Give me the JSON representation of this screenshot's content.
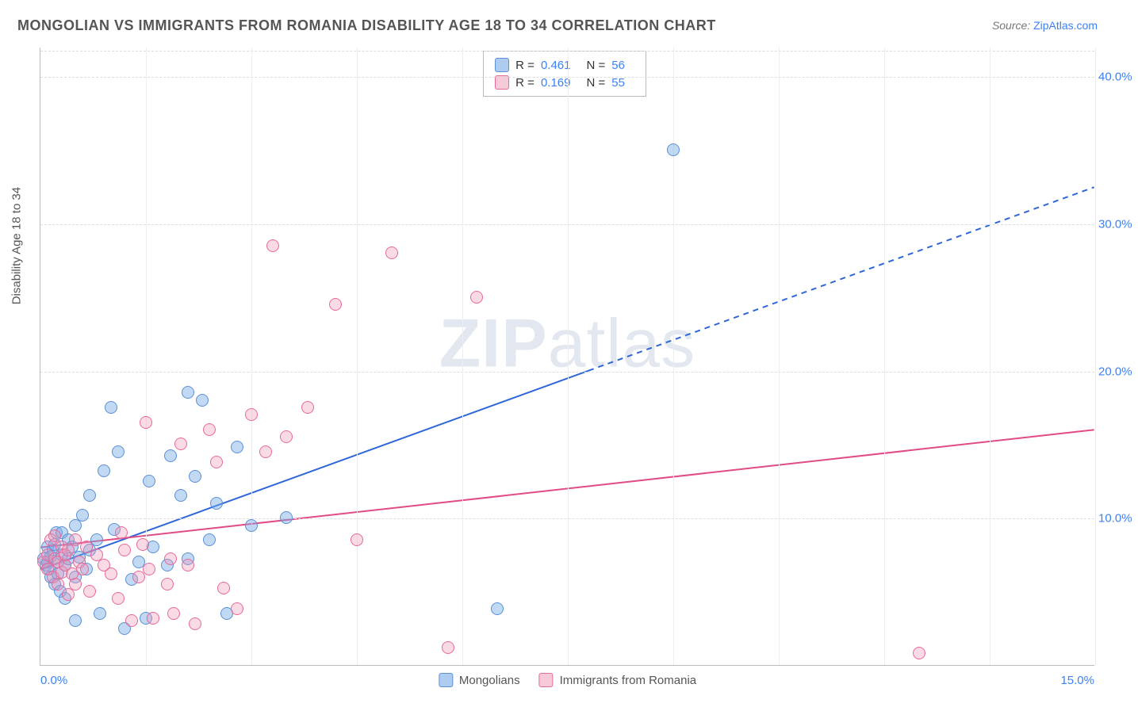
{
  "title": "MONGOLIAN VS IMMIGRANTS FROM ROMANIA DISABILITY AGE 18 TO 34 CORRELATION CHART",
  "source_label": "Source:",
  "source_link": "ZipAtlas.com",
  "ylabel": "Disability Age 18 to 34",
  "watermark_a": "ZIP",
  "watermark_b": "atlas",
  "chart": {
    "type": "scatter",
    "xlim": [
      0,
      15
    ],
    "ylim": [
      0,
      42
    ],
    "xticks": [
      {
        "v": 0,
        "label": "0.0%"
      },
      {
        "v": 15,
        "label": "15.0%"
      }
    ],
    "yticks": [
      {
        "v": 10,
        "label": "10.0%"
      },
      {
        "v": 20,
        "label": "20.0%"
      },
      {
        "v": 30,
        "label": "30.0%"
      },
      {
        "v": 40,
        "label": "40.0%"
      }
    ],
    "vgrid": [
      1.5,
      3.0,
      4.5,
      6.0,
      7.5,
      9.0,
      10.5,
      12.0,
      13.5,
      15.0
    ],
    "background_color": "#ffffff",
    "grid_color": "#dddddd",
    "axis_color": "#bbbbbb",
    "tick_label_color": "#3b82f6",
    "point_radius": 8,
    "series": [
      {
        "name": "Mongolians",
        "color_fill": "rgba(120,170,230,0.45)",
        "color_stroke": "#5b8fd6",
        "points": [
          [
            0.05,
            7.2
          ],
          [
            0.08,
            6.8
          ],
          [
            0.1,
            7.0
          ],
          [
            0.1,
            8.0
          ],
          [
            0.12,
            6.5
          ],
          [
            0.15,
            6.0
          ],
          [
            0.15,
            7.4
          ],
          [
            0.18,
            7.8
          ],
          [
            0.2,
            5.5
          ],
          [
            0.2,
            8.2
          ],
          [
            0.22,
            9.0
          ],
          [
            0.25,
            6.2
          ],
          [
            0.25,
            7.0
          ],
          [
            0.28,
            5.0
          ],
          [
            0.3,
            7.5
          ],
          [
            0.3,
            9.0
          ],
          [
            0.35,
            6.8
          ],
          [
            0.35,
            4.5
          ],
          [
            0.4,
            8.5
          ],
          [
            0.4,
            7.2
          ],
          [
            0.45,
            8.0
          ],
          [
            0.5,
            9.5
          ],
          [
            0.5,
            6.0
          ],
          [
            0.5,
            3.0
          ],
          [
            0.55,
            7.3
          ],
          [
            0.6,
            10.2
          ],
          [
            0.65,
            6.5
          ],
          [
            0.7,
            11.5
          ],
          [
            0.7,
            7.8
          ],
          [
            0.8,
            8.5
          ],
          [
            0.85,
            3.5
          ],
          [
            0.9,
            13.2
          ],
          [
            1.0,
            17.5
          ],
          [
            1.05,
            9.2
          ],
          [
            1.1,
            14.5
          ],
          [
            1.2,
            2.5
          ],
          [
            1.3,
            5.8
          ],
          [
            1.4,
            7.0
          ],
          [
            1.5,
            3.2
          ],
          [
            1.55,
            12.5
          ],
          [
            1.6,
            8.0
          ],
          [
            1.8,
            6.8
          ],
          [
            1.85,
            14.2
          ],
          [
            2.0,
            11.5
          ],
          [
            2.1,
            18.5
          ],
          [
            2.1,
            7.2
          ],
          [
            2.2,
            12.8
          ],
          [
            2.3,
            18.0
          ],
          [
            2.4,
            8.5
          ],
          [
            2.5,
            11.0
          ],
          [
            2.65,
            3.5
          ],
          [
            2.8,
            14.8
          ],
          [
            3.0,
            9.5
          ],
          [
            3.5,
            10.0
          ],
          [
            6.5,
            3.8
          ],
          [
            9.0,
            35.0
          ]
        ],
        "trendline": {
          "start": [
            0,
            6.5
          ],
          "end": [
            15,
            32.5
          ],
          "solid_to_x": 7.8,
          "color": "#2f67d8",
          "width": 2
        },
        "stats": {
          "R": "0.461",
          "N": "56"
        }
      },
      {
        "name": "Immigrants from Romania",
        "color_fill": "rgba(240,150,180,0.35)",
        "color_stroke": "#e66a9b",
        "points": [
          [
            0.05,
            7.0
          ],
          [
            0.1,
            6.5
          ],
          [
            0.1,
            7.5
          ],
          [
            0.15,
            8.5
          ],
          [
            0.18,
            6.0
          ],
          [
            0.2,
            7.2
          ],
          [
            0.2,
            8.8
          ],
          [
            0.25,
            5.5
          ],
          [
            0.25,
            7.0
          ],
          [
            0.3,
            6.3
          ],
          [
            0.3,
            8.0
          ],
          [
            0.35,
            6.8
          ],
          [
            0.35,
            7.5
          ],
          [
            0.4,
            4.8
          ],
          [
            0.4,
            7.8
          ],
          [
            0.45,
            6.2
          ],
          [
            0.5,
            8.5
          ],
          [
            0.5,
            5.5
          ],
          [
            0.55,
            7.0
          ],
          [
            0.6,
            6.5
          ],
          [
            0.65,
            8.0
          ],
          [
            0.7,
            5.0
          ],
          [
            0.8,
            7.5
          ],
          [
            0.9,
            6.8
          ],
          [
            1.0,
            6.2
          ],
          [
            1.1,
            4.5
          ],
          [
            1.15,
            9.0
          ],
          [
            1.2,
            7.8
          ],
          [
            1.3,
            3.0
          ],
          [
            1.4,
            6.0
          ],
          [
            1.45,
            8.2
          ],
          [
            1.5,
            16.5
          ],
          [
            1.55,
            6.5
          ],
          [
            1.6,
            3.2
          ],
          [
            1.8,
            5.5
          ],
          [
            1.85,
            7.2
          ],
          [
            1.9,
            3.5
          ],
          [
            2.0,
            15.0
          ],
          [
            2.1,
            6.8
          ],
          [
            2.2,
            2.8
          ],
          [
            2.4,
            16.0
          ],
          [
            2.5,
            13.8
          ],
          [
            2.6,
            5.2
          ],
          [
            2.8,
            3.8
          ],
          [
            3.0,
            17.0
          ],
          [
            3.2,
            14.5
          ],
          [
            3.3,
            28.5
          ],
          [
            3.5,
            15.5
          ],
          [
            3.8,
            17.5
          ],
          [
            4.2,
            24.5
          ],
          [
            4.5,
            8.5
          ],
          [
            5.0,
            28.0
          ],
          [
            5.8,
            1.2
          ],
          [
            6.2,
            25.0
          ],
          [
            12.5,
            0.8
          ]
        ],
        "trendline": {
          "start": [
            0,
            8.0
          ],
          "end": [
            15,
            16.0
          ],
          "solid_to_x": 15,
          "color": "#e14b86",
          "width": 2
        },
        "stats": {
          "R": "0.169",
          "N": "55"
        }
      }
    ],
    "legend_labels": {
      "R": "R =",
      "N": "N ="
    }
  }
}
